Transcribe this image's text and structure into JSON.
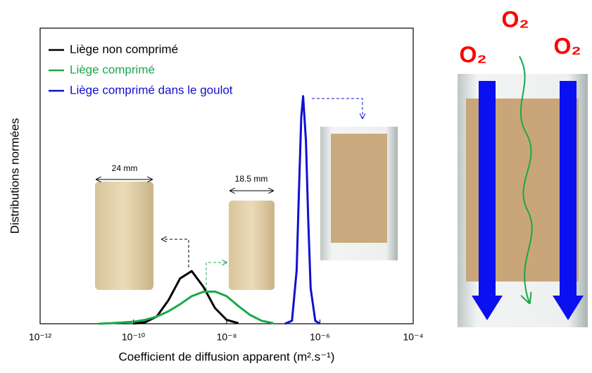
{
  "chart_data": {
    "type": "line",
    "xscale": "log",
    "x_label": "Coefficient de diffusion apparent (m².s⁻¹)",
    "y_label": "Distributions normées",
    "xlim": [
      1e-12,
      0.0001
    ],
    "ylim": [
      0,
      1
    ],
    "xticks": [
      {
        "value": 1e-12,
        "label": "10⁻¹²"
      },
      {
        "value": 1e-10,
        "label": "10⁻¹⁰"
      },
      {
        "value": 1e-08,
        "label": "10⁻⁸"
      },
      {
        "value": 1e-06,
        "label": "10⁻⁶"
      },
      {
        "value": 0.0001,
        "label": "10⁻⁴"
      }
    ],
    "legend": "top-left",
    "series": [
      {
        "name": "Liège non comprimé",
        "color": "#000000",
        "x": [
          1e-10,
          1.778e-10,
          3.162e-10,
          5.623e-10,
          1e-09,
          1.778e-09,
          3.162e-09,
          5.623e-09,
          1e-08,
          1.778e-08
        ],
        "values": [
          0.0005,
          0.005,
          0.024,
          0.079,
          0.153,
          0.178,
          0.125,
          0.053,
          0.013,
          0.002
        ]
      },
      {
        "name": "Liège comprimé",
        "color": "#1aa84a",
        "x": [
          1.778e-11,
          3.162e-11,
          5.623e-11,
          1e-10,
          1.778e-10,
          3.162e-10,
          5.623e-10,
          1e-09,
          1.778e-09,
          3.162e-09,
          5.623e-09,
          1e-08,
          1.778e-08,
          3.162e-08,
          5.623e-08,
          1e-07
        ],
        "values": [
          0,
          0.002,
          0.004,
          0.007,
          0.013,
          0.024,
          0.042,
          0.066,
          0.093,
          0.108,
          0.109,
          0.093,
          0.06,
          0.03,
          0.01,
          0.002
        ]
      },
      {
        "name": "Liège comprimé dans le goulot",
        "color": "#1010d0",
        "x": [
          1.778e-07,
          2.512e-07,
          3.162e-07,
          3.548e-07,
          3.981e-07,
          4.365e-07,
          5.012e-07,
          5.623e-07,
          6.31e-07,
          7.943e-07,
          1e-06
        ],
        "values": [
          0,
          0.01,
          0.18,
          0.45,
          0.7,
          0.77,
          0.62,
          0.35,
          0.12,
          0.01,
          0
        ]
      }
    ],
    "annotations": [
      "24 mm",
      "18.5 mm",
      "O₂",
      "O₂",
      "O₂"
    ]
  }
}
